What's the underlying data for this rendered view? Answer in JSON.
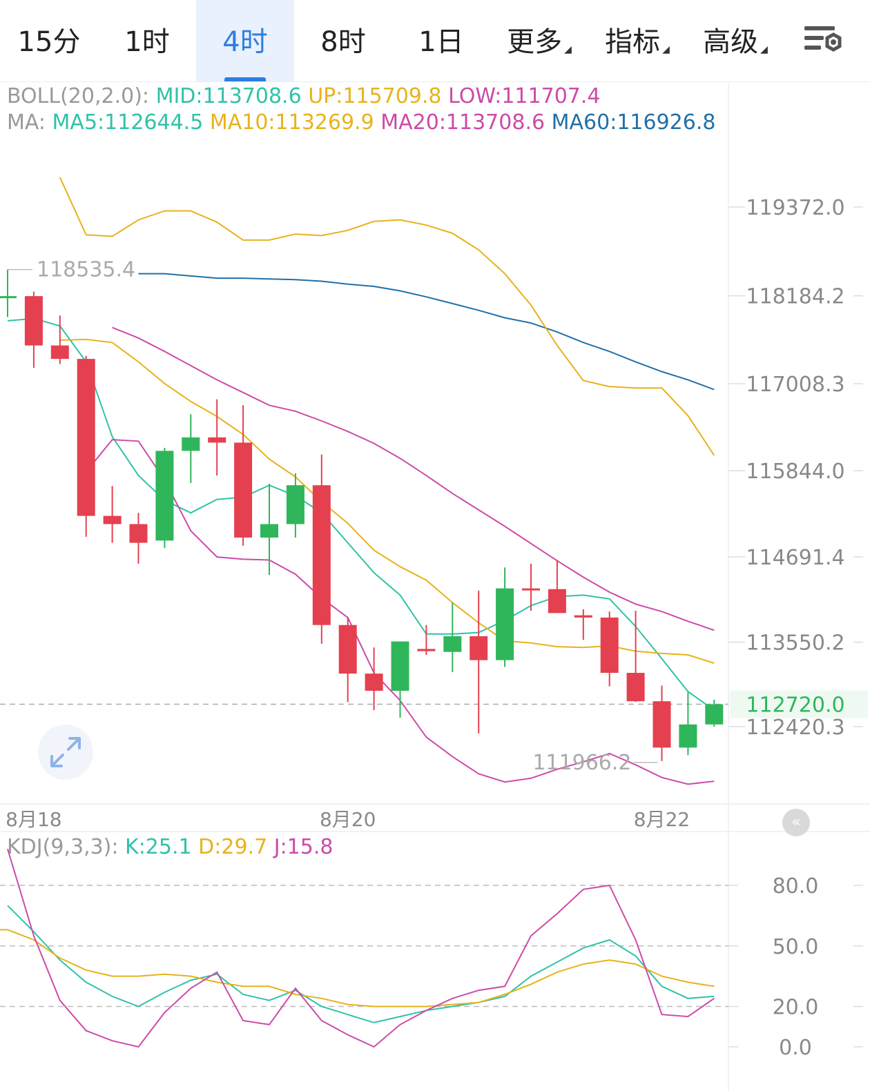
{
  "tabs": [
    {
      "label": "15分",
      "active": false,
      "dropdown": false
    },
    {
      "label": "1时",
      "active": false,
      "dropdown": false
    },
    {
      "label": "4时",
      "active": true,
      "dropdown": false
    },
    {
      "label": "8时",
      "active": false,
      "dropdown": false
    },
    {
      "label": "1日",
      "active": false,
      "dropdown": false
    },
    {
      "label": "更多",
      "active": false,
      "dropdown": true
    },
    {
      "label": "指标",
      "active": false,
      "dropdown": true
    },
    {
      "label": "高级",
      "active": false,
      "dropdown": true
    }
  ],
  "settings_icon": "chart-settings-icon",
  "boll": {
    "prefix": "BOLL(20,2.0):",
    "mid": "MID:113708.6",
    "up": "UP:115709.8",
    "low": "LOW:111707.4"
  },
  "ma": {
    "prefix": "MA:",
    "ma5": "MA5:112644.5",
    "ma10": "MA10:113269.9",
    "ma20": "MA20:113708.6",
    "ma60": "MA60:116926.8"
  },
  "kdj": {
    "prefix": "KDJ(9,3,3):",
    "k": "K:25.1",
    "d": "D:29.7",
    "j": "J:15.8"
  },
  "colors": {
    "up": "#2fb65a",
    "down": "#e5404f",
    "ma5": "#2fc2a8",
    "ma10": "#e8b21a",
    "ma20": "#cc4aa8",
    "ma60": "#1f70a8",
    "current_price": "#2fb65a",
    "axis_text": "#888888",
    "active_tab": "#2f7de1"
  },
  "chart_data": [
    {
      "type": "candlestick",
      "period": "4时",
      "date_labels": [
        "8月18",
        "8月20",
        "8月22"
      ],
      "ylim": [
        111100,
        120000
      ],
      "y_ticks": [
        119372.0,
        118184.2,
        117008.3,
        115844.0,
        114691.4,
        113550.2,
        112420.3
      ],
      "current_price": 112720.0,
      "current_price_label": "112720.0",
      "annotations": [
        {
          "text": "118535.4",
          "type": "high"
        },
        {
          "text": "111966.2",
          "type": "low"
        }
      ],
      "candles": [
        {
          "o": 118180,
          "h": 118535,
          "l": 117900,
          "c": 118180
        },
        {
          "o": 118180,
          "h": 118240,
          "l": 117220,
          "c": 117520
        },
        {
          "o": 117520,
          "h": 117920,
          "l": 117270,
          "c": 117340
        },
        {
          "o": 117340,
          "h": 117380,
          "l": 114960,
          "c": 115240
        },
        {
          "o": 115240,
          "h": 115640,
          "l": 114880,
          "c": 115130
        },
        {
          "o": 115130,
          "h": 115280,
          "l": 114600,
          "c": 114880
        },
        {
          "o": 114910,
          "h": 116150,
          "l": 114810,
          "c": 116110
        },
        {
          "o": 116110,
          "h": 116600,
          "l": 115680,
          "c": 116290
        },
        {
          "o": 116290,
          "h": 116800,
          "l": 115780,
          "c": 116220
        },
        {
          "o": 116220,
          "h": 116720,
          "l": 114840,
          "c": 114950
        },
        {
          "o": 114950,
          "h": 115670,
          "l": 114450,
          "c": 115130
        },
        {
          "o": 115130,
          "h": 115810,
          "l": 114950,
          "c": 115650
        },
        {
          "o": 115650,
          "h": 116060,
          "l": 113530,
          "c": 113780
        },
        {
          "o": 113780,
          "h": 113880,
          "l": 112750,
          "c": 113130
        },
        {
          "o": 113130,
          "h": 113480,
          "l": 112640,
          "c": 112900
        },
        {
          "o": 112900,
          "h": 113550,
          "l": 112540,
          "c": 113560
        },
        {
          "o": 113460,
          "h": 113780,
          "l": 113380,
          "c": 113430
        },
        {
          "o": 113420,
          "h": 114080,
          "l": 113150,
          "c": 113630
        },
        {
          "o": 113630,
          "h": 114240,
          "l": 112330,
          "c": 113310
        },
        {
          "o": 113310,
          "h": 114550,
          "l": 113220,
          "c": 114270
        },
        {
          "o": 114270,
          "h": 114600,
          "l": 113970,
          "c": 114260
        },
        {
          "o": 114260,
          "h": 114650,
          "l": 113940,
          "c": 113940
        },
        {
          "o": 113910,
          "h": 113990,
          "l": 113580,
          "c": 113880
        },
        {
          "o": 113880,
          "h": 113960,
          "l": 112960,
          "c": 113140
        },
        {
          "o": 113140,
          "h": 113970,
          "l": 112750,
          "c": 112760
        },
        {
          "o": 112760,
          "h": 112970,
          "l": 111960,
          "c": 112140
        },
        {
          "o": 112140,
          "h": 112880,
          "l": 112040,
          "c": 112450
        },
        {
          "o": 112450,
          "h": 112780,
          "l": 112420,
          "c": 112720
        }
      ],
      "series": [
        {
          "name": "MA5",
          "values": [
            117850,
            117880,
            117780,
            117300,
            116300,
            115780,
            115450,
            115280,
            115460,
            115490,
            115650,
            115510,
            115280,
            114880,
            114480,
            114180,
            113660,
            113660,
            113680,
            113840,
            114040,
            114160,
            114180,
            114130,
            113760,
            113330,
            112890,
            112640
          ]
        },
        {
          "name": "MA10",
          "values": [
            117590,
            117600,
            117560,
            117300,
            117010,
            116770,
            116570,
            116330,
            116000,
            115760,
            115430,
            115140,
            114780,
            114560,
            114380,
            114080,
            113810,
            113570,
            113540,
            113490,
            113480,
            113500,
            113430,
            113400,
            113380,
            113270
          ]
        },
        {
          "name": "MA20",
          "values": [
            117760,
            117620,
            117440,
            117250,
            117060,
            116890,
            116720,
            116640,
            116510,
            116370,
            116210,
            116010,
            115780,
            115540,
            115320,
            115100,
            114870,
            114640,
            114420,
            114220,
            114060,
            113960,
            113830,
            113710
          ]
        },
        {
          "name": "MA60",
          "values": [
            118480,
            118480,
            118450,
            118420,
            118420,
            118410,
            118400,
            118380,
            118340,
            118310,
            118250,
            118170,
            118080,
            117990,
            117890,
            117820,
            117700,
            117560,
            117440,
            117300,
            117170,
            117060,
            116930
          ]
        },
        {
          "name": "UP",
          "values": [
            119770,
            119000,
            118980,
            119200,
            119320,
            119320,
            119170,
            118930,
            118930,
            119010,
            118990,
            119060,
            119180,
            119200,
            119130,
            119020,
            118800,
            118480,
            118060,
            117520,
            117050,
            116970,
            116950,
            116950,
            116580,
            116050
          ]
        },
        {
          "name": "LOW",
          "values": [
            115830,
            116260,
            116240,
            115720,
            115040,
            114690,
            114660,
            114650,
            114460,
            114140,
            113880,
            113140,
            112770,
            112280,
            112020,
            111790,
            111680,
            111730,
            111850,
            111950,
            112060,
            111910,
            111740,
            111650,
            111690
          ]
        }
      ]
    },
    {
      "type": "line",
      "title": "KDJ(9,3,3)",
      "ylim": [
        -5,
        95
      ],
      "y_ticks": [
        80.0,
        50.0,
        20.0,
        0.0
      ],
      "series": [
        {
          "name": "K",
          "values": [
            70,
            57,
            43,
            32,
            25,
            20,
            27,
            33,
            36,
            26,
            23,
            28,
            20,
            16,
            12,
            15,
            18,
            20,
            22,
            25,
            35,
            42,
            49,
            53,
            45,
            30,
            24,
            25
          ]
        },
        {
          "name": "D",
          "values": [
            58,
            58,
            53,
            44,
            38,
            35,
            35,
            36,
            35,
            32,
            30,
            30,
            26,
            24,
            21,
            20,
            20,
            20,
            21,
            22,
            26,
            31,
            37,
            41,
            43,
            41,
            35,
            32,
            30
          ]
        },
        {
          "name": "J",
          "values": [
            98,
            55,
            23,
            8,
            3,
            0,
            17,
            29,
            37,
            13,
            11,
            29,
            13,
            6,
            0,
            11,
            18,
            24,
            28,
            30,
            55,
            66,
            78,
            80,
            53,
            16,
            15,
            24
          ]
        }
      ]
    }
  ]
}
